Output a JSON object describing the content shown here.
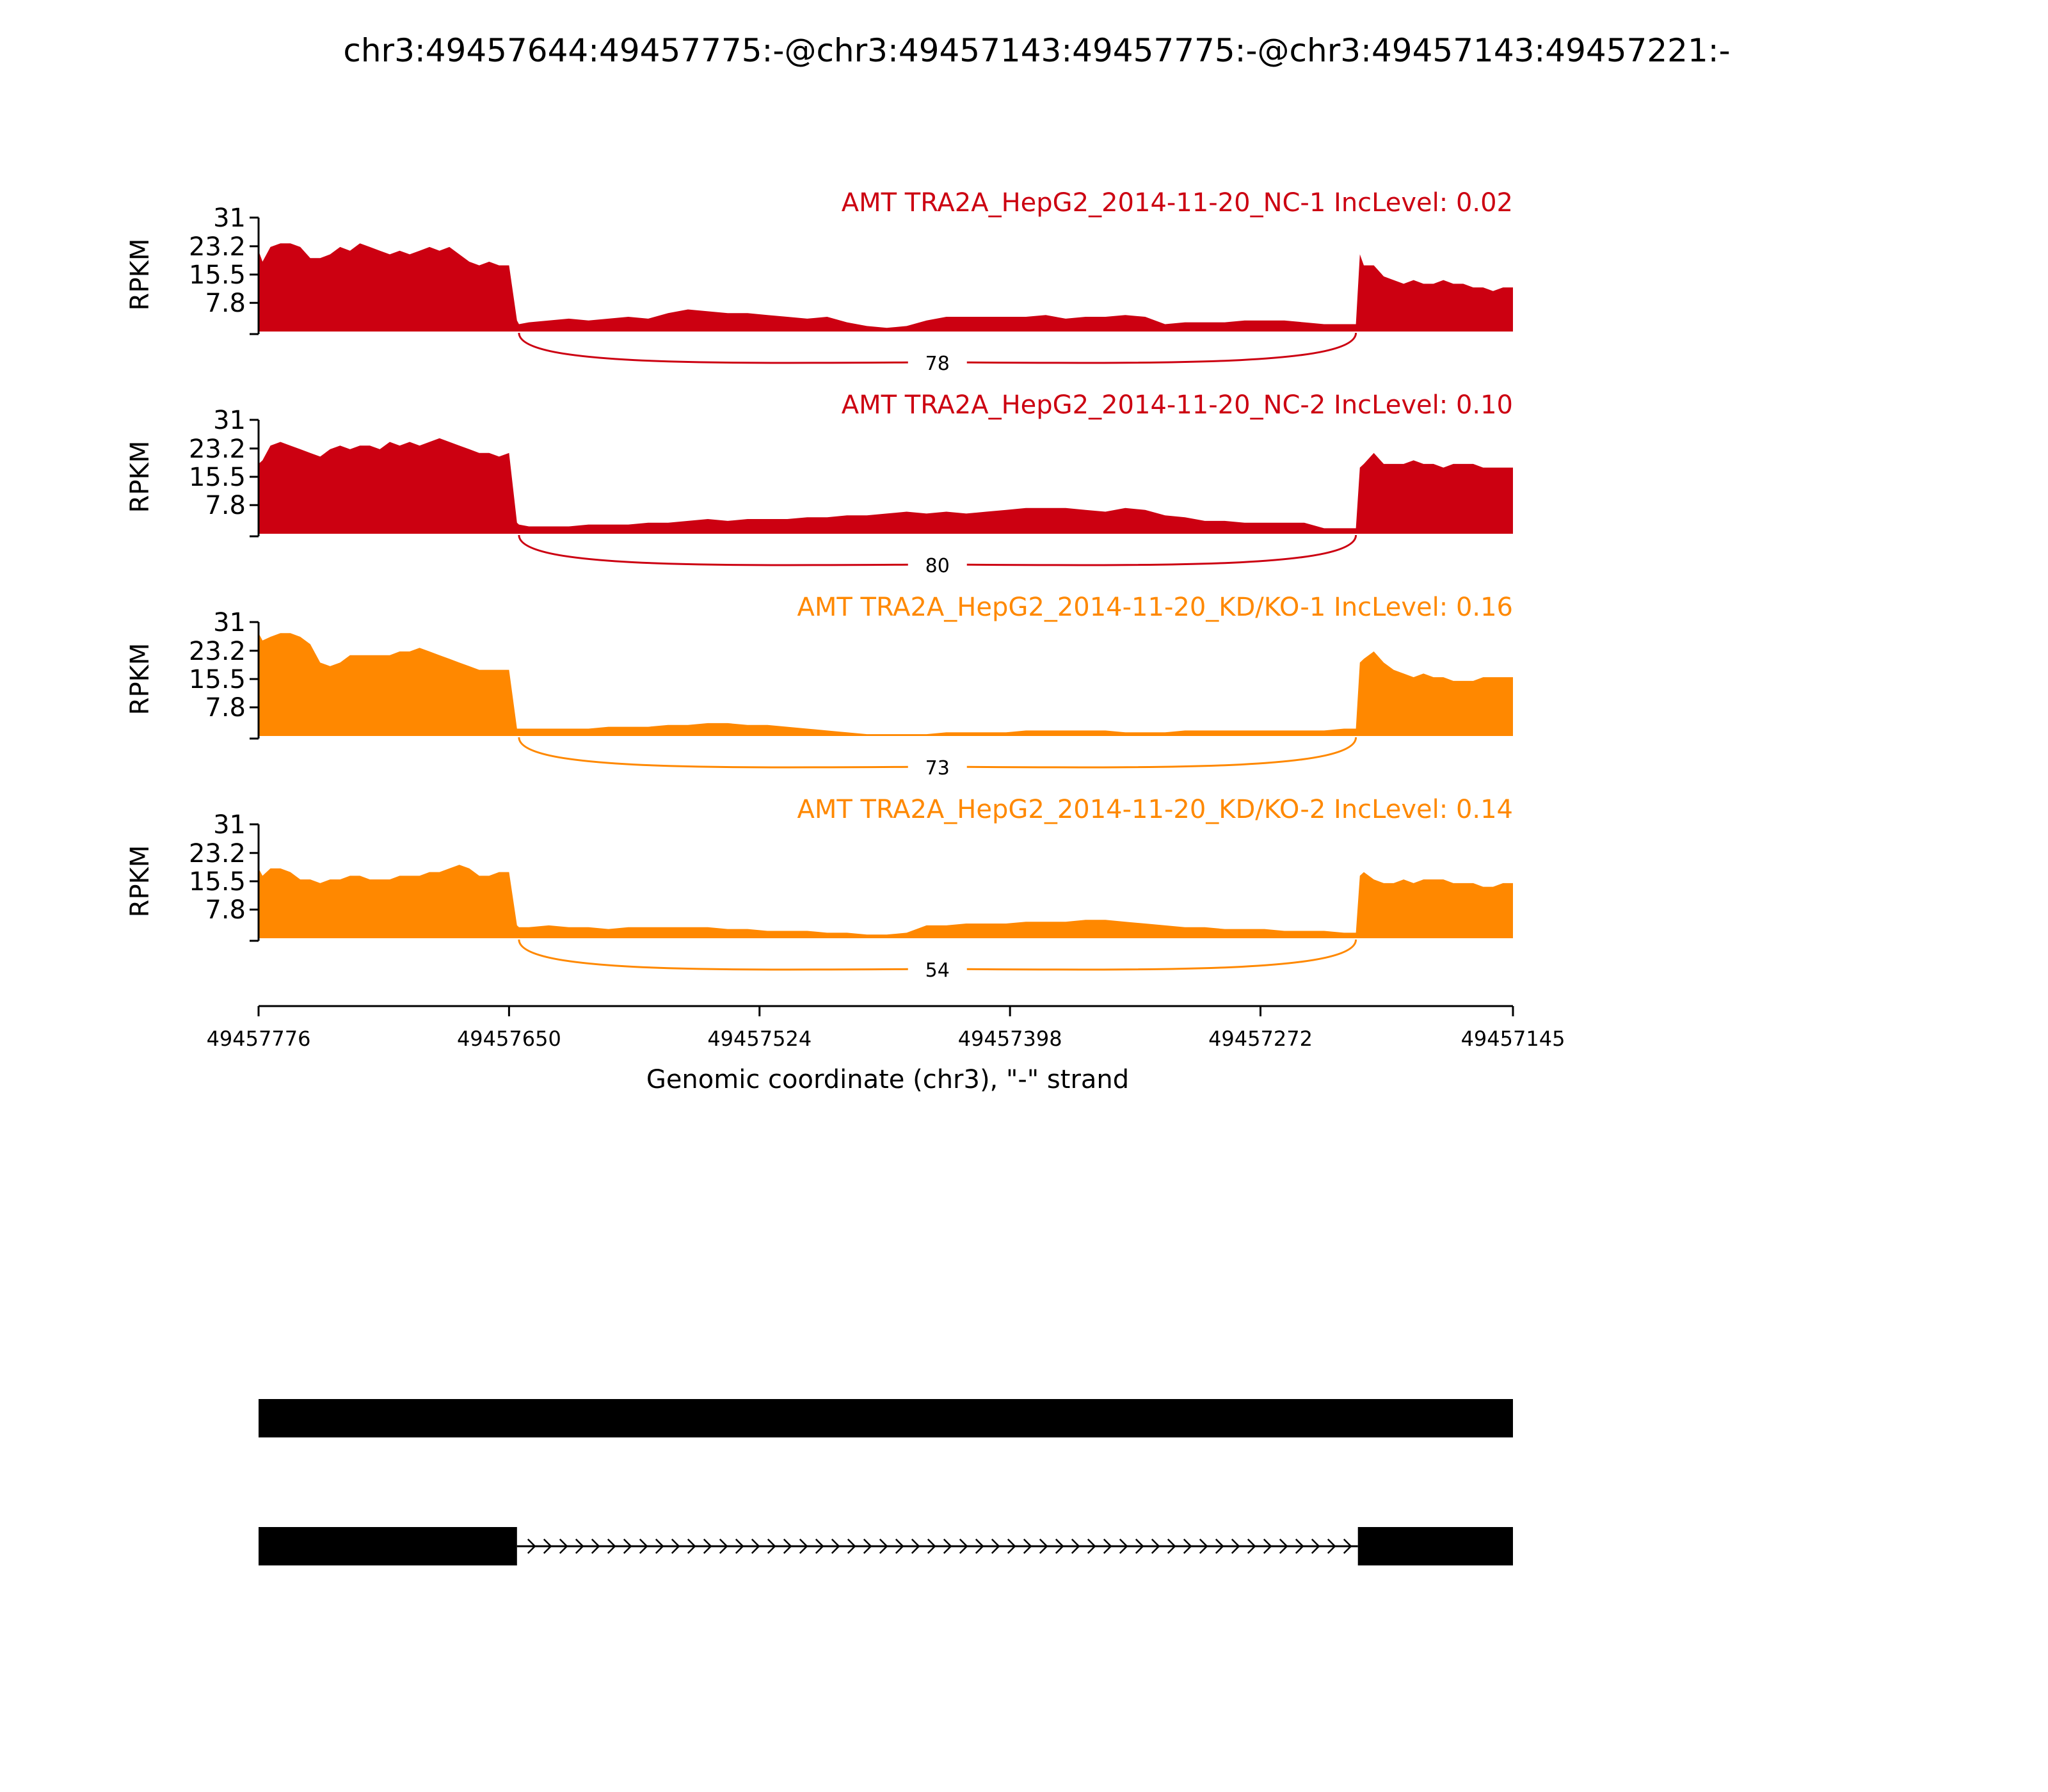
{
  "figure": {
    "title": "chr3:49457644:49457775:-@chr3:49457143:49457775:-@chr3:49457143:49457221:-",
    "xlabel": "Genomic coordinate (chr3), \"-\" strand",
    "ylabel": "RPKM"
  },
  "colors": {
    "NC": "#cc0011",
    "KDKO": "#ff8800",
    "axis": "#000000",
    "gene": "#000000"
  },
  "chart_data": {
    "type": "area",
    "title": "chr3:49457644:49457775:-@chr3:49457143:49457775:-@chr3:49457143:49457221:-",
    "xlabel": "Genomic coordinate (chr3), \"-\" strand",
    "ylabel": "RPKM",
    "xlim": [
      49457776,
      49457145
    ],
    "x_ticks": [
      "49457776",
      "49457650",
      "49457524",
      "49457398",
      "49457272",
      "49457145"
    ],
    "y_ticks": [
      "7.8",
      "15.5",
      "23.2",
      "31"
    ],
    "ylim": [
      0,
      31
    ],
    "exons": [
      [
        49457776,
        49457645
      ],
      [
        49457224,
        49457145
      ]
    ],
    "junction_x": [
      49457645,
      49457224
    ],
    "series": [
      {
        "name": "AMT TRA2A_HepG2_2014-11-20_NC-1 IncLevel: 0.02",
        "group": "NC",
        "junction_count": "78",
        "x": [
          49457776,
          49457774,
          49457770,
          49457765,
          49457760,
          49457755,
          49457750,
          49457745,
          49457740,
          49457735,
          49457730,
          49457725,
          49457720,
          49457715,
          49457710,
          49457705,
          49457700,
          49457695,
          49457690,
          49457685,
          49457680,
          49457675,
          49457670,
          49457665,
          49457660,
          49457655,
          49457650,
          49457646,
          49457645,
          49457640,
          49457630,
          49457620,
          49457610,
          49457600,
          49457590,
          49457580,
          49457570,
          49457560,
          49457550,
          49457540,
          49457530,
          49457520,
          49457510,
          49457500,
          49457490,
          49457480,
          49457470,
          49457460,
          49457450,
          49457440,
          49457430,
          49457420,
          49457410,
          49457400,
          49457390,
          49457380,
          49457370,
          49457360,
          49457350,
          49457340,
          49457330,
          49457320,
          49457310,
          49457300,
          49457290,
          49457280,
          49457270,
          49457260,
          49457250,
          49457240,
          49457230,
          49457225,
          49457224,
          49457222,
          49457220,
          49457215,
          49457210,
          49457205,
          49457200,
          49457195,
          49457190,
          49457185,
          49457180,
          49457175,
          49457170,
          49457165,
          49457160,
          49457155,
          49457150,
          49457145
        ],
        "values": [
          22,
          19,
          23,
          24,
          24,
          23,
          20,
          20,
          21,
          23,
          22,
          24,
          23,
          22,
          21,
          22,
          21,
          22,
          23,
          22,
          23,
          21,
          19,
          18,
          19,
          18,
          18,
          3,
          2,
          2.5,
          3,
          3.5,
          3,
          3.5,
          4,
          3.5,
          5,
          6,
          5.5,
          5,
          5,
          4.5,
          4,
          3.5,
          4,
          2.5,
          1.5,
          1,
          1.5,
          3,
          4,
          4,
          4,
          4,
          4,
          4.5,
          3.5,
          4,
          4,
          4.5,
          4,
          2,
          2.5,
          2.5,
          2.5,
          3,
          3,
          3,
          2.5,
          2,
          2,
          2,
          2,
          21,
          18,
          18,
          15,
          14,
          13,
          14,
          13,
          13,
          14,
          13,
          13,
          12,
          12,
          11,
          12,
          12
        ]
      },
      {
        "name": "AMT TRA2A_HepG2_2014-11-20_NC-2 IncLevel: 0.10",
        "group": "NC",
        "junction_count": "80",
        "x": [
          49457776,
          49457774,
          49457770,
          49457765,
          49457760,
          49457755,
          49457750,
          49457745,
          49457740,
          49457735,
          49457730,
          49457725,
          49457720,
          49457715,
          49457710,
          49457705,
          49457700,
          49457695,
          49457690,
          49457685,
          49457680,
          49457675,
          49457670,
          49457665,
          49457660,
          49457655,
          49457650,
          49457646,
          49457645,
          49457640,
          49457630,
          49457620,
          49457610,
          49457600,
          49457590,
          49457580,
          49457570,
          49457560,
          49457550,
          49457540,
          49457530,
          49457520,
          49457510,
          49457500,
          49457490,
          49457480,
          49457470,
          49457460,
          49457450,
          49457440,
          49457430,
          49457420,
          49457410,
          49457400,
          49457390,
          49457380,
          49457370,
          49457360,
          49457350,
          49457340,
          49457330,
          49457320,
          49457310,
          49457300,
          49457290,
          49457280,
          49457270,
          49457260,
          49457250,
          49457240,
          49457230,
          49457225,
          49457224,
          49457222,
          49457220,
          49457215,
          49457210,
          49457205,
          49457200,
          49457195,
          49457190,
          49457185,
          49457180,
          49457175,
          49457170,
          49457165,
          49457160,
          49457155,
          49457150,
          49457145
        ],
        "values": [
          19,
          20,
          24,
          25,
          24,
          23,
          22,
          21,
          23,
          24,
          23,
          24,
          24,
          23,
          25,
          24,
          25,
          24,
          25,
          26,
          25,
          24,
          23,
          22,
          22,
          21,
          22,
          3,
          2.5,
          2,
          2,
          2,
          2.5,
          2.5,
          2.5,
          3,
          3,
          3.5,
          4,
          3.5,
          4,
          4,
          4,
          4.5,
          4.5,
          5,
          5,
          5.5,
          6,
          5.5,
          6,
          5.5,
          6,
          6.5,
          7,
          7,
          7,
          6.5,
          6,
          7,
          6.5,
          5,
          4.5,
          3.5,
          3.5,
          3,
          3,
          3,
          3,
          1.5,
          1.5,
          1.5,
          1.5,
          18,
          19,
          22,
          19,
          19,
          19,
          20,
          19,
          19,
          18,
          19,
          19,
          19,
          18,
          18,
          18,
          18
        ]
      },
      {
        "name": "AMT TRA2A_HepG2_2014-11-20_KD/KO-1 IncLevel: 0.16",
        "group": "KDKO",
        "junction_count": "73",
        "x": [
          49457776,
          49457774,
          49457770,
          49457765,
          49457760,
          49457755,
          49457750,
          49457745,
          49457740,
          49457735,
          49457730,
          49457725,
          49457720,
          49457715,
          49457710,
          49457705,
          49457700,
          49457695,
          49457690,
          49457685,
          49457680,
          49457675,
          49457670,
          49457665,
          49457660,
          49457655,
          49457650,
          49457646,
          49457645,
          49457640,
          49457630,
          49457620,
          49457610,
          49457600,
          49457590,
          49457580,
          49457570,
          49457560,
          49457550,
          49457540,
          49457530,
          49457520,
          49457510,
          49457500,
          49457490,
          49457480,
          49457470,
          49457460,
          49457450,
          49457440,
          49457430,
          49457420,
          49457410,
          49457400,
          49457390,
          49457380,
          49457370,
          49457360,
          49457350,
          49457340,
          49457330,
          49457320,
          49457310,
          49457300,
          49457290,
          49457280,
          49457270,
          49457260,
          49457250,
          49457240,
          49457230,
          49457225,
          49457224,
          49457222,
          49457220,
          49457215,
          49457210,
          49457205,
          49457200,
          49457195,
          49457190,
          49457185,
          49457180,
          49457175,
          49457170,
          49457165,
          49457160,
          49457155,
          49457150,
          49457145
        ],
        "values": [
          28,
          26,
          27,
          28,
          28,
          27,
          25,
          20,
          19,
          20,
          22,
          22,
          22,
          22,
          22,
          23,
          23,
          24,
          23,
          22,
          21,
          20,
          19,
          18,
          18,
          18,
          18,
          2,
          2,
          2,
          2,
          2,
          2,
          2.5,
          2.5,
          2.5,
          3,
          3,
          3.5,
          3.5,
          3,
          3,
          2.5,
          2,
          1.5,
          1,
          0.5,
          0.5,
          0.5,
          0.5,
          1,
          1,
          1,
          1,
          1.5,
          1.5,
          1.5,
          1.5,
          1.5,
          1,
          1,
          1,
          1.5,
          1.5,
          1.5,
          1.5,
          1.5,
          1.5,
          1.5,
          1.5,
          2,
          2,
          2,
          20,
          21,
          23,
          20,
          18,
          17,
          16,
          17,
          16,
          16,
          15,
          15,
          15,
          16,
          16,
          16,
          16
        ]
      },
      {
        "name": "AMT TRA2A_HepG2_2014-11-20_KD/KO-2 IncLevel: 0.14",
        "group": "KDKO",
        "junction_count": "54",
        "x": [
          49457776,
          49457774,
          49457770,
          49457765,
          49457760,
          49457755,
          49457750,
          49457745,
          49457740,
          49457735,
          49457730,
          49457725,
          49457720,
          49457715,
          49457710,
          49457705,
          49457700,
          49457695,
          49457690,
          49457685,
          49457680,
          49457675,
          49457670,
          49457665,
          49457660,
          49457655,
          49457650,
          49457646,
          49457645,
          49457640,
          49457630,
          49457620,
          49457610,
          49457600,
          49457590,
          49457580,
          49457570,
          49457560,
          49457550,
          49457540,
          49457530,
          49457520,
          49457510,
          49457500,
          49457490,
          49457480,
          49457470,
          49457460,
          49457450,
          49457440,
          49457430,
          49457420,
          49457410,
          49457400,
          49457390,
          49457380,
          49457370,
          49457360,
          49457350,
          49457340,
          49457330,
          49457320,
          49457310,
          49457300,
          49457290,
          49457280,
          49457270,
          49457260,
          49457250,
          49457240,
          49457230,
          49457225,
          49457224,
          49457222,
          49457220,
          49457215,
          49457210,
          49457205,
          49457200,
          49457195,
          49457190,
          49457185,
          49457180,
          49457175,
          49457170,
          49457165,
          49457160,
          49457155,
          49457150,
          49457145
        ],
        "values": [
          19,
          17,
          19,
          19,
          18,
          16,
          16,
          15,
          16,
          16,
          17,
          17,
          16,
          16,
          16,
          17,
          17,
          17,
          18,
          18,
          19,
          20,
          19,
          17,
          17,
          18,
          18,
          3.5,
          3,
          3,
          3.5,
          3,
          3,
          2.5,
          3,
          3,
          3,
          3,
          3,
          2.5,
          2.5,
          2,
          2,
          2,
          1.5,
          1.5,
          1,
          1,
          1.5,
          3.5,
          3.5,
          4,
          4,
          4,
          4.5,
          4.5,
          4.5,
          5,
          5,
          4.5,
          4,
          3.5,
          3,
          3,
          2.5,
          2.5,
          2.5,
          2,
          2,
          2,
          1.5,
          1.5,
          1.5,
          17,
          18,
          16,
          15,
          15,
          16,
          15,
          16,
          16,
          16,
          15,
          15,
          15,
          14,
          14,
          15,
          15
        ]
      }
    ],
    "isoforms": [
      {
        "blocks": [
          [
            49457776,
            49457145
          ]
        ]
      },
      {
        "blocks": [
          [
            49457776,
            49457646
          ],
          [
            49457223,
            49457145
          ]
        ],
        "intron": [
          49457646,
          49457223
        ],
        "strand": "-"
      }
    ]
  }
}
